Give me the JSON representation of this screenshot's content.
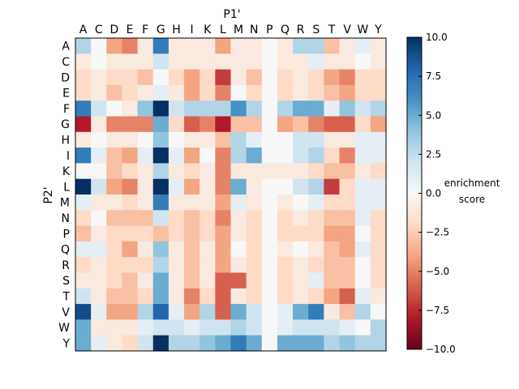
{
  "chart_data": {
    "type": "heatmap",
    "title": "P1'",
    "xlabel": "",
    "ylabel": "P2'",
    "x_categories": [
      "A",
      "C",
      "D",
      "E",
      "F",
      "G",
      "H",
      "I",
      "K",
      "L",
      "M",
      "N",
      "P",
      "Q",
      "R",
      "S",
      "T",
      "V",
      "W",
      "Y"
    ],
    "y_categories": [
      "A",
      "C",
      "D",
      "E",
      "F",
      "G",
      "H",
      "I",
      "K",
      "L",
      "M",
      "N",
      "P",
      "Q",
      "R",
      "S",
      "T",
      "V",
      "W",
      "Y"
    ],
    "colorbar": {
      "label_line1": "enrichment",
      "label_line2": "score",
      "range": [
        -10,
        10
      ],
      "ticks": [
        10,
        7.5,
        5,
        2.5,
        0,
        -2.5,
        -5,
        -7.5,
        -10
      ],
      "tick_labels": [
        "10.0",
        "7.5",
        "5.0",
        "2.5",
        "0.0",
        "−2.5",
        "−5.0",
        "−7.5",
        "−10.0"
      ],
      "colormap": "RdBu diverging (red negative, blue positive)"
    },
    "values": [
      [
        3,
        0,
        -4,
        -5,
        -1,
        7,
        -1,
        -1,
        -1,
        -4,
        -1,
        -1,
        0,
        -1,
        3,
        3,
        -3,
        -1,
        1,
        -1
      ],
      [
        -1,
        0,
        -1,
        -1,
        -1,
        2,
        -1,
        -1,
        -1,
        -1,
        -1,
        -1,
        0,
        -1,
        -1,
        1,
        -1,
        -1,
        0,
        -1
      ],
      [
        -2,
        -1,
        -2,
        -2,
        -3,
        0,
        -2,
        -4,
        -2,
        -7,
        -1,
        -3,
        0,
        -2,
        -1,
        -2,
        -4,
        -5,
        -2,
        -2
      ],
      [
        -2,
        -1,
        -3,
        -2,
        -1,
        1,
        -1,
        -4,
        -2,
        -5,
        0,
        -2,
        0,
        -2,
        -1,
        -2,
        -3,
        -4,
        -2,
        -2
      ],
      [
        7,
        2,
        0,
        -1,
        4,
        10,
        2,
        3,
        3,
        3,
        6,
        3,
        0,
        3,
        5,
        5,
        1,
        4,
        2,
        3
      ],
      [
        -8,
        -1,
        -5,
        -5,
        -5,
        5,
        -2,
        -6,
        -5,
        -8,
        -3,
        -3,
        0,
        -4,
        -3,
        -5,
        -6,
        -6,
        -2,
        -4
      ],
      [
        -1,
        0,
        -1,
        -1,
        0,
        4,
        0,
        -1,
        -1,
        -3,
        3,
        1,
        0,
        0,
        2,
        2,
        -1,
        -1,
        1,
        1
      ],
      [
        7,
        1,
        -3,
        -4,
        1,
        10,
        1,
        -4,
        0,
        -5,
        3,
        5,
        0,
        0,
        2,
        3,
        -2,
        -5,
        1,
        1
      ],
      [
        0,
        0,
        -3,
        -2,
        -1,
        3,
        -1,
        -2,
        -1,
        -5,
        -1,
        -1,
        -1,
        -1,
        -1,
        -2,
        -3,
        -3,
        -1,
        -2
      ],
      [
        10,
        2,
        -4,
        -5,
        -1,
        10,
        1,
        -4,
        -1,
        -5,
        5,
        -1,
        0,
        0,
        2,
        3,
        -7,
        -2,
        1,
        1
      ],
      [
        1,
        -1,
        -1,
        -2,
        -1,
        7,
        -1,
        -1,
        -1,
        -4,
        1,
        -1,
        0,
        -1,
        0,
        1,
        -2,
        -2,
        1,
        1
      ],
      [
        -2,
        0,
        -3,
        -3,
        -3,
        2,
        -2,
        -3,
        -2,
        -5,
        -1,
        -2,
        0,
        -2,
        -1,
        -2,
        -3,
        -3,
        1,
        -2
      ],
      [
        -3,
        -1,
        -2,
        -2,
        -2,
        -3,
        -2,
        -3,
        -2,
        -4,
        -1,
        -2,
        0,
        -2,
        -2,
        -2,
        -4,
        -4,
        0,
        -2
      ],
      [
        1,
        1,
        -2,
        -4,
        -1,
        4,
        -1,
        -3,
        -1,
        -4,
        0,
        -2,
        0,
        -1,
        0,
        -1,
        -3,
        -4,
        1,
        -2
      ],
      [
        -2,
        -1,
        -2,
        -2,
        -2,
        3,
        -1,
        -3,
        -1,
        -4,
        -1,
        -2,
        0,
        -2,
        -1,
        -2,
        -3,
        -3,
        0,
        -2
      ],
      [
        -1,
        -1,
        -2,
        -3,
        -1,
        5,
        -1,
        -3,
        -1,
        -6,
        -6,
        -2,
        0,
        -2,
        -1,
        1,
        -3,
        -3,
        0,
        -2
      ],
      [
        2,
        -1,
        -3,
        -3,
        -2,
        5,
        -1,
        -5,
        -2,
        -6,
        -1,
        -2,
        0,
        -2,
        -1,
        -2,
        -4,
        -6,
        1,
        -1
      ],
      [
        9,
        1,
        -4,
        -4,
        3,
        8,
        1,
        -4,
        3,
        -6,
        5,
        2,
        0,
        1,
        5,
        7,
        -1,
        -3,
        3,
        0
      ],
      [
        5,
        -1,
        -1,
        -1,
        1,
        2,
        2,
        1,
        2,
        2,
        3,
        2,
        0,
        1,
        2,
        2,
        2,
        1,
        0,
        3
      ],
      [
        5,
        1,
        -1,
        -2,
        2,
        10,
        3,
        3,
        4,
        5,
        7,
        5,
        0,
        5,
        5,
        5,
        3,
        4,
        3,
        3
      ]
    ]
  }
}
